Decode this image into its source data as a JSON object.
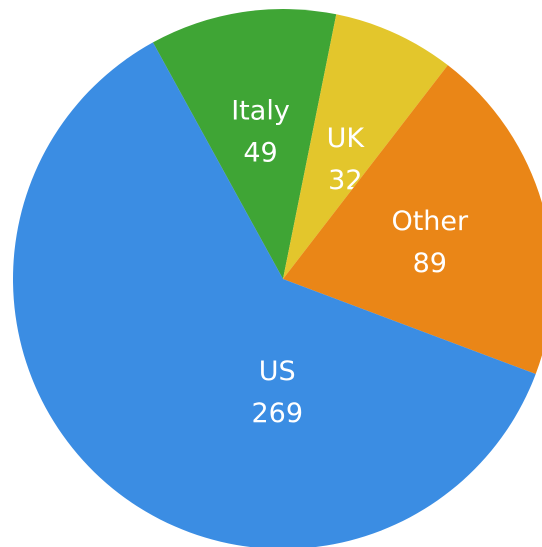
{
  "chart_data": {
    "type": "pie",
    "categories": [
      "Italy",
      "UK",
      "Other",
      "US"
    ],
    "values": [
      49,
      32,
      89,
      269
    ],
    "colors": [
      "#3fa535",
      "#e3c62c",
      "#ea8617",
      "#3b8de3"
    ]
  }
}
